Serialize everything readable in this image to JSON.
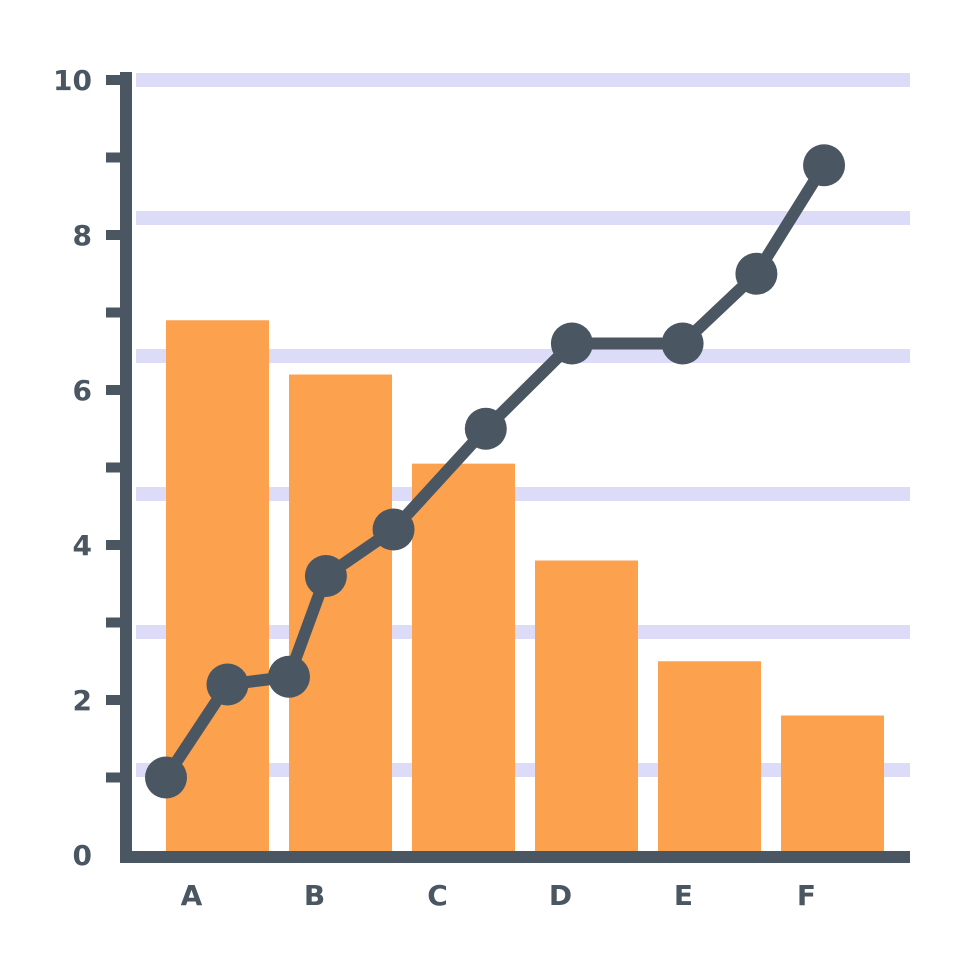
{
  "chart_data": {
    "type": "bar",
    "categories": [
      "A",
      "B",
      "C",
      "D",
      "E",
      "F"
    ],
    "values": [
      6.9,
      6.2,
      5.05,
      3.8,
      2.5,
      1.8
    ],
    "line_series": {
      "x": [
        0.0,
        0.5,
        1.0,
        1.3,
        1.85,
        2.6,
        3.3,
        4.2,
        4.8,
        5.35
      ],
      "y": [
        1.0,
        2.2,
        2.3,
        3.6,
        4.2,
        5.5,
        6.6,
        6.6,
        7.5,
        8.9
      ]
    },
    "ylim": [
      0,
      10
    ],
    "y_ticks": [
      "0",
      "2",
      "4",
      "6",
      "8",
      "10"
    ],
    "xlabel": "",
    "ylabel": "",
    "title": "",
    "grid": true,
    "colors": {
      "bar": "#fca24f",
      "line": "#4a5661",
      "axis": "#4a5661",
      "grid": "#dcdcf8"
    }
  }
}
